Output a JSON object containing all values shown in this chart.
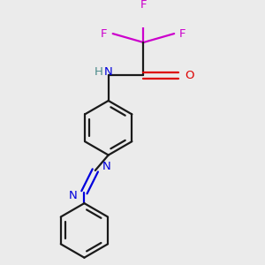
{
  "bg_color": "#ebebeb",
  "bond_color": "#1a1a1a",
  "N_color": "#0000dd",
  "O_color": "#dd0000",
  "F_color": "#cc00cc",
  "H_color": "#4a8a8a",
  "lw": 1.6,
  "fs": 9.5,
  "fig_w": 3.0,
  "fig_h": 3.0,
  "dpi": 100,
  "xlim": [
    -2.2,
    2.2
  ],
  "ylim": [
    -3.2,
    2.2
  ]
}
